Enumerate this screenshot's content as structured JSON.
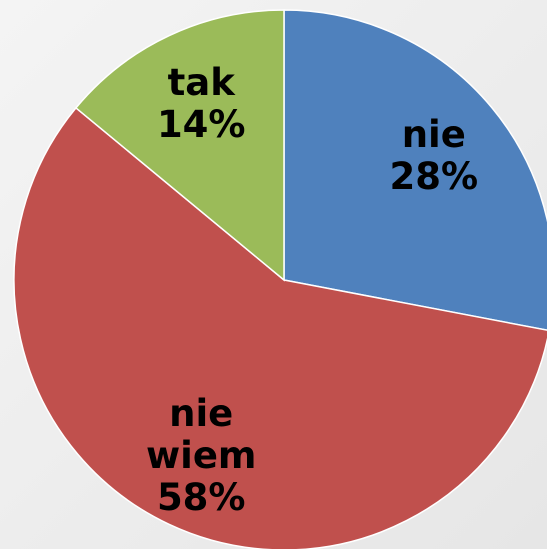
{
  "chart_data": {
    "type": "pie",
    "categories": [
      "nie",
      "nie wiem",
      "tak"
    ],
    "values": [
      28,
      58,
      14
    ],
    "value_labels": [
      "28%",
      "58%",
      "14%"
    ],
    "colors": [
      "#4f81bd",
      "#c0504d",
      "#9bbb59"
    ]
  }
}
